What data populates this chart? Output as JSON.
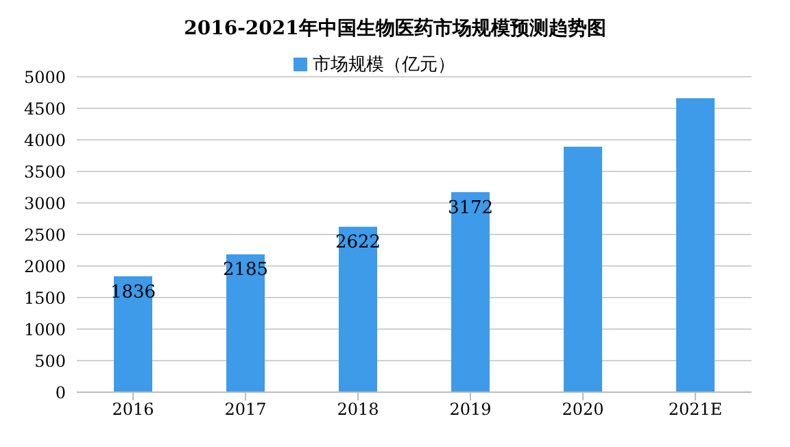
{
  "chart_data": {
    "type": "bar",
    "title": "2016-2021年中国生物医药市场规模预测趋势图",
    "categories": [
      "2016",
      "2017",
      "2018",
      "2019",
      "2020",
      "2021E"
    ],
    "series": [
      {
        "name": "市场规模（亿元）",
        "color": "#3d9be9",
        "values": [
          1836,
          2185,
          2622,
          3172,
          3890,
          4660
        ],
        "value_labels": [
          "1836",
          "2185",
          "2622",
          "3172",
          null,
          null
        ]
      }
    ],
    "ylim": [
      0,
      5000
    ],
    "yticks": [
      0,
      500,
      1000,
      1500,
      2000,
      2500,
      3000,
      3500,
      4000,
      4500,
      5000
    ],
    "grid": "y",
    "legend": "top"
  }
}
